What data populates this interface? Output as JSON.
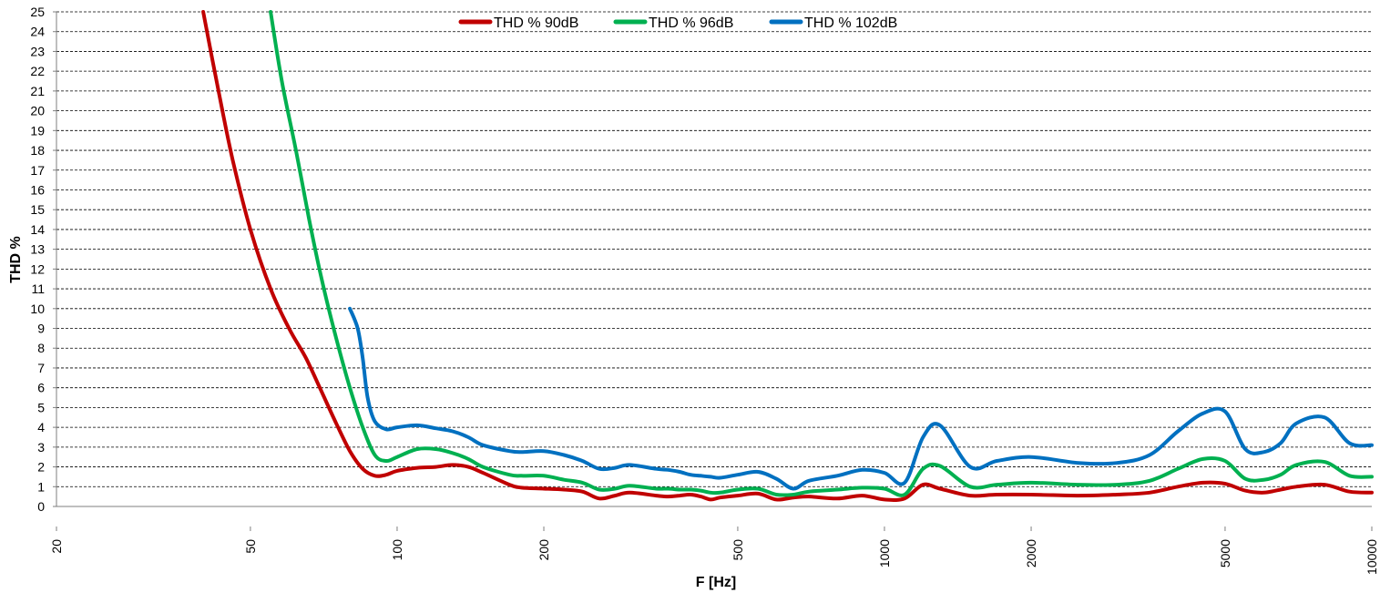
{
  "chart_data": {
    "type": "line",
    "title": "",
    "xlabel": "F [Hz]",
    "ylabel": "THD %",
    "x_scale": "log",
    "xlim": [
      20,
      10000
    ],
    "ylim": [
      0,
      25
    ],
    "grid": true,
    "legend_position": "top",
    "x_ticks": [
      {
        "value": 20,
        "label": "20"
      },
      {
        "value": 50,
        "label": "50"
      },
      {
        "value": 100,
        "label": "100"
      },
      {
        "value": 200,
        "label": "200"
      },
      {
        "value": 500,
        "label": "500"
      },
      {
        "value": 1000,
        "label": "1000"
      },
      {
        "value": 2000,
        "label": "2000"
      },
      {
        "value": 5000,
        "label": "5000"
      },
      {
        "value": 10000,
        "label": "10000"
      }
    ],
    "y_ticks": [
      "0",
      "1",
      "2",
      "3",
      "4",
      "5",
      "6",
      "7",
      "8",
      "9",
      "10",
      "11",
      "12",
      "13",
      "14",
      "15",
      "16",
      "17",
      "18",
      "19",
      "20",
      "21",
      "22",
      "23",
      "24",
      "25"
    ],
    "series": [
      {
        "name": "THD % 90dB",
        "color": "#C00000",
        "x": [
          40,
          43,
          46,
          50,
          55,
          60,
          65,
          70,
          75,
          80,
          85,
          90,
          95,
          100,
          110,
          120,
          130,
          140,
          150,
          170,
          180,
          200,
          220,
          240,
          260,
          280,
          300,
          340,
          360,
          380,
          400,
          420,
          440,
          460,
          500,
          550,
          600,
          650,
          700,
          800,
          900,
          1000,
          1100,
          1200,
          1300,
          1500,
          1700,
          2000,
          2500,
          3000,
          3500,
          4000,
          4500,
          5000,
          5500,
          6000,
          6500,
          7000,
          8000,
          9000,
          10000
        ],
        "y": [
          25,
          21,
          17.5,
          14,
          11,
          9,
          7.5,
          5.8,
          4.2,
          2.8,
          1.9,
          1.55,
          1.6,
          1.8,
          1.95,
          2.0,
          2.1,
          2.0,
          1.7,
          1.1,
          0.95,
          0.9,
          0.85,
          0.75,
          0.4,
          0.55,
          0.7,
          0.55,
          0.5,
          0.55,
          0.6,
          0.5,
          0.35,
          0.45,
          0.55,
          0.65,
          0.35,
          0.45,
          0.5,
          0.4,
          0.55,
          0.35,
          0.4,
          1.1,
          0.9,
          0.55,
          0.6,
          0.6,
          0.55,
          0.6,
          0.7,
          1.0,
          1.2,
          1.15,
          0.8,
          0.7,
          0.85,
          1.0,
          1.1,
          0.75,
          0.7
        ]
      },
      {
        "name": "THD % 96dB",
        "color": "#00B050",
        "x": [
          55,
          58,
          62,
          66,
          70,
          75,
          80,
          85,
          90,
          95,
          100,
          110,
          120,
          130,
          140,
          150,
          170,
          180,
          200,
          220,
          240,
          260,
          280,
          300,
          340,
          360,
          380,
          400,
          420,
          440,
          460,
          500,
          550,
          600,
          650,
          700,
          800,
          900,
          1000,
          1100,
          1200,
          1300,
          1500,
          1700,
          2000,
          2500,
          3000,
          3500,
          4000,
          4500,
          5000,
          5500,
          6000,
          6500,
          7000,
          8000,
          9000,
          10000
        ],
        "y": [
          25,
          21.5,
          18,
          14.5,
          11.5,
          8.5,
          6,
          4,
          2.6,
          2.3,
          2.5,
          2.9,
          2.9,
          2.7,
          2.4,
          2.0,
          1.6,
          1.55,
          1.55,
          1.35,
          1.2,
          0.85,
          0.9,
          1.05,
          0.9,
          0.9,
          0.85,
          0.85,
          0.8,
          0.7,
          0.7,
          0.85,
          0.9,
          0.6,
          0.6,
          0.75,
          0.85,
          0.95,
          0.9,
          0.6,
          1.9,
          2.05,
          1.0,
          1.1,
          1.2,
          1.1,
          1.1,
          1.3,
          1.9,
          2.4,
          2.3,
          1.4,
          1.35,
          1.6,
          2.1,
          2.25,
          1.55,
          1.5
        ]
      },
      {
        "name": "THD % 102dB",
        "color": "#0070C0",
        "x": [
          80,
          83,
          85,
          87,
          90,
          95,
          100,
          110,
          120,
          130,
          140,
          150,
          170,
          180,
          200,
          220,
          240,
          260,
          280,
          300,
          340,
          360,
          380,
          400,
          420,
          440,
          460,
          500,
          550,
          600,
          650,
          700,
          800,
          900,
          1000,
          1100,
          1200,
          1300,
          1500,
          1700,
          2000,
          2500,
          3000,
          3500,
          4000,
          4500,
          5000,
          5500,
          6000,
          6500,
          7000,
          8000,
          9000,
          10000
        ],
        "y": [
          10,
          9,
          7.5,
          5.5,
          4.3,
          3.9,
          4.0,
          4.1,
          3.95,
          3.8,
          3.5,
          3.1,
          2.8,
          2.75,
          2.8,
          2.6,
          2.3,
          1.9,
          1.95,
          2.1,
          1.9,
          1.85,
          1.75,
          1.6,
          1.55,
          1.5,
          1.45,
          1.6,
          1.75,
          1.4,
          0.9,
          1.3,
          1.55,
          1.85,
          1.7,
          1.2,
          3.5,
          4.1,
          2.0,
          2.3,
          2.5,
          2.2,
          2.2,
          2.6,
          3.8,
          4.7,
          4.8,
          2.9,
          2.75,
          3.2,
          4.2,
          4.5,
          3.2,
          3.1
        ]
      }
    ]
  }
}
